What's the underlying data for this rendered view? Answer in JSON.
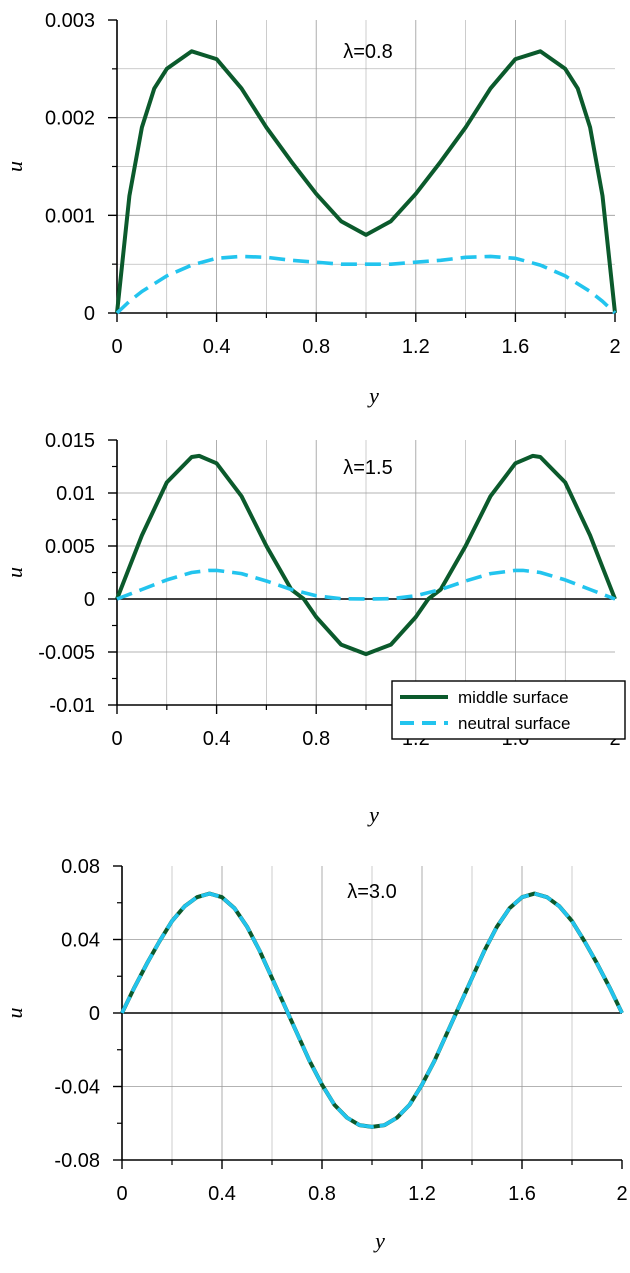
{
  "colors": {
    "middle_surface": "#0b5a2c",
    "neutral_surface": "#22c4ee",
    "grid": "#9a9a9a",
    "axis": "#000000"
  },
  "chart_data": [
    {
      "type": "line",
      "annotation": "λ=0.8",
      "xlabel": "y",
      "ylabel": "u",
      "xlim": [
        0,
        2
      ],
      "ylim": [
        0,
        0.003
      ],
      "xticks": [
        0,
        0.4,
        0.8,
        1.2,
        1.6,
        2
      ],
      "xtick_labels": [
        "0",
        "0.4",
        "0.8",
        "1.2",
        "1.6",
        "2"
      ],
      "yticks": [
        0,
        0.001,
        0.002,
        0.003
      ],
      "ytick_labels": [
        "0",
        "0.001",
        "0.002",
        "0.003"
      ],
      "grid": true,
      "zero_line": false,
      "legend": false,
      "series": [
        {
          "key": "middle",
          "style": "solid",
          "x": [
            0,
            0.05,
            0.1,
            0.15,
            0.2,
            0.3,
            0.4,
            0.5,
            0.6,
            0.7,
            0.8,
            0.9,
            1.0,
            1.1,
            1.2,
            1.3,
            1.4,
            1.5,
            1.6,
            1.7,
            1.8,
            1.85,
            1.9,
            1.95,
            2.0
          ],
          "y": [
            0,
            0.0012,
            0.0019,
            0.0023,
            0.0025,
            0.00268,
            0.0026,
            0.0023,
            0.0019,
            0.00155,
            0.00122,
            0.00094,
            0.0008,
            0.00094,
            0.00122,
            0.00155,
            0.0019,
            0.0023,
            0.0026,
            0.00268,
            0.0025,
            0.0023,
            0.0019,
            0.0012,
            0
          ]
        },
        {
          "key": "neutral",
          "style": "dashed",
          "x": [
            0,
            0.05,
            0.1,
            0.2,
            0.3,
            0.4,
            0.5,
            0.6,
            0.7,
            0.8,
            0.9,
            1.0,
            1.1,
            1.2,
            1.3,
            1.4,
            1.5,
            1.6,
            1.7,
            1.8,
            1.9,
            1.95,
            2.0
          ],
          "y": [
            0,
            0.00012,
            0.00022,
            0.00038,
            0.00049,
            0.00056,
            0.00058,
            0.00057,
            0.00054,
            0.00052,
            0.0005,
            0.0005,
            0.0005,
            0.00052,
            0.00054,
            0.00057,
            0.00058,
            0.00056,
            0.00049,
            0.00038,
            0.00022,
            0.00012,
            0
          ]
        }
      ]
    },
    {
      "type": "line",
      "annotation": "λ=1.5",
      "xlabel": "y",
      "ylabel": "u",
      "xlim": [
        0,
        2
      ],
      "ylim": [
        -0.01,
        0.015
      ],
      "xticks": [
        0,
        0.4,
        0.8,
        1.2,
        1.6,
        2
      ],
      "xtick_labels": [
        "0",
        "0.4",
        "0.8",
        "1.2",
        "1.6",
        "2"
      ],
      "yticks": [
        -0.01,
        -0.005,
        0,
        0.005,
        0.01,
        0.015
      ],
      "ytick_labels": [
        "-0.01",
        "-0.005",
        "0",
        "0.005",
        "0.01",
        "0.015"
      ],
      "grid": true,
      "zero_line": true,
      "legend": true,
      "series": [
        {
          "key": "middle",
          "name": "middle surface",
          "style": "solid",
          "x": [
            0,
            0.05,
            0.1,
            0.2,
            0.3,
            0.33,
            0.4,
            0.5,
            0.6,
            0.7,
            0.75,
            0.8,
            0.9,
            1.0,
            1.1,
            1.2,
            1.25,
            1.3,
            1.4,
            1.5,
            1.6,
            1.67,
            1.7,
            1.8,
            1.9,
            1.95,
            2.0
          ],
          "y": [
            0,
            0.003,
            0.006,
            0.011,
            0.0134,
            0.0135,
            0.0128,
            0.0097,
            0.005,
            0.0009,
            0,
            -0.0017,
            -0.0043,
            -0.0052,
            -0.0043,
            -0.0017,
            0,
            0.0009,
            0.005,
            0.0097,
            0.0128,
            0.0135,
            0.0134,
            0.011,
            0.006,
            0.003,
            0
          ]
        },
        {
          "key": "neutral",
          "name": "neutral surface",
          "style": "dashed",
          "x": [
            0,
            0.1,
            0.2,
            0.3,
            0.37,
            0.4,
            0.5,
            0.6,
            0.7,
            0.8,
            0.9,
            1.0,
            1.1,
            1.2,
            1.3,
            1.4,
            1.5,
            1.6,
            1.63,
            1.7,
            1.8,
            1.9,
            2.0
          ],
          "y": [
            0,
            0.0009,
            0.0018,
            0.0025,
            0.0027,
            0.0027,
            0.0024,
            0.0017,
            0.0009,
            0.0003,
            3e-05,
            0,
            3e-05,
            0.0003,
            0.0009,
            0.0017,
            0.0024,
            0.0027,
            0.0027,
            0.0025,
            0.0018,
            0.0009,
            0
          ]
        }
      ]
    },
    {
      "type": "line",
      "annotation": "λ=3.0",
      "xlabel": "y",
      "ylabel": "u",
      "xlim": [
        0,
        2
      ],
      "ylim": [
        -0.08,
        0.08
      ],
      "xticks": [
        0,
        0.4,
        0.8,
        1.2,
        1.6,
        2
      ],
      "xtick_labels": [
        "0",
        "0.4",
        "0.8",
        "1.2",
        "1.6",
        "2"
      ],
      "yticks": [
        -0.08,
        -0.04,
        0,
        0.04,
        0.08
      ],
      "ytick_labels": [
        "-0.08",
        "-0.04",
        "0",
        "0.04",
        "0.08"
      ],
      "grid": true,
      "zero_line": true,
      "legend": false,
      "series": [
        {
          "key": "middle",
          "style": "solid",
          "x": [
            0,
            0.05,
            0.1,
            0.15,
            0.2,
            0.25,
            0.3,
            0.35,
            0.4,
            0.45,
            0.5,
            0.55,
            0.6,
            0.65,
            0.7,
            0.75,
            0.8,
            0.85,
            0.9,
            0.95,
            1.0,
            1.05,
            1.1,
            1.15,
            1.2,
            1.25,
            1.3,
            1.35,
            1.4,
            1.45,
            1.5,
            1.55,
            1.6,
            1.65,
            1.7,
            1.75,
            1.8,
            1.85,
            1.9,
            1.95,
            2.0
          ],
          "y": [
            0,
            0.014,
            0.027,
            0.039,
            0.05,
            0.058,
            0.063,
            0.065,
            0.063,
            0.057,
            0.047,
            0.034,
            0.019,
            0.004,
            -0.011,
            -0.026,
            -0.039,
            -0.05,
            -0.057,
            -0.061,
            -0.062,
            -0.061,
            -0.057,
            -0.05,
            -0.039,
            -0.026,
            -0.011,
            0.004,
            0.019,
            0.034,
            0.047,
            0.057,
            0.063,
            0.065,
            0.063,
            0.058,
            0.05,
            0.039,
            0.027,
            0.014,
            0
          ]
        },
        {
          "key": "neutral",
          "style": "dashed",
          "x": [
            0,
            0.05,
            0.1,
            0.15,
            0.2,
            0.25,
            0.3,
            0.35,
            0.4,
            0.45,
            0.5,
            0.55,
            0.6,
            0.65,
            0.7,
            0.75,
            0.8,
            0.85,
            0.9,
            0.95,
            1.0,
            1.05,
            1.1,
            1.15,
            1.2,
            1.25,
            1.3,
            1.35,
            1.4,
            1.45,
            1.5,
            1.55,
            1.6,
            1.65,
            1.7,
            1.75,
            1.8,
            1.85,
            1.9,
            1.95,
            2.0
          ],
          "y": [
            0,
            0.014,
            0.027,
            0.039,
            0.05,
            0.058,
            0.063,
            0.065,
            0.063,
            0.057,
            0.047,
            0.034,
            0.019,
            0.004,
            -0.011,
            -0.026,
            -0.039,
            -0.05,
            -0.057,
            -0.061,
            -0.062,
            -0.061,
            -0.057,
            -0.05,
            -0.039,
            -0.026,
            -0.011,
            0.004,
            0.019,
            0.034,
            0.047,
            0.057,
            0.063,
            0.065,
            0.063,
            0.058,
            0.05,
            0.039,
            0.027,
            0.014,
            0
          ]
        }
      ]
    }
  ]
}
